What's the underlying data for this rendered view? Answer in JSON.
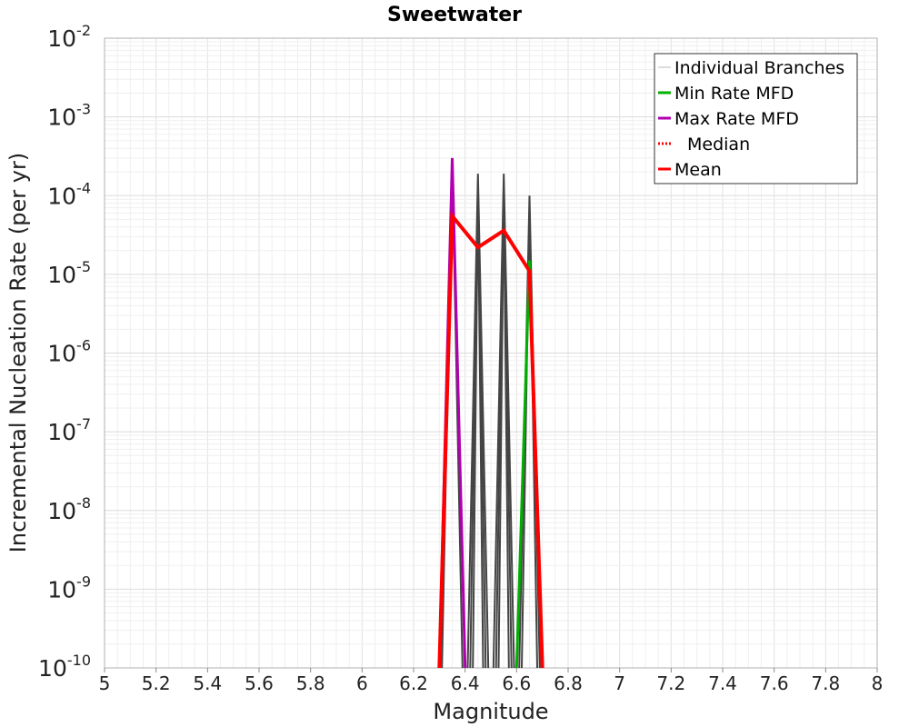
{
  "chart_data": {
    "type": "line",
    "title": "Sweetwater",
    "xlabel": "Magnitude",
    "ylabel": "Incremental Nucleation Rate (per yr)",
    "xlim": [
      5,
      8
    ],
    "ylim": [
      1e-10,
      0.01
    ],
    "yscale": "log",
    "grid": true,
    "legend_position": "top-right",
    "x_ticks": [
      "5",
      "5.2",
      "5.4",
      "5.6",
      "5.8",
      "6",
      "6.2",
      "6.4",
      "6.6",
      "6.8",
      "7",
      "7.2",
      "7.4",
      "7.6",
      "7.8",
      "8"
    ],
    "y_ticks": [
      {
        "base": "10",
        "exp": "-10"
      },
      {
        "base": "10",
        "exp": "-9"
      },
      {
        "base": "10",
        "exp": "-8"
      },
      {
        "base": "10",
        "exp": "-7"
      },
      {
        "base": "10",
        "exp": "-6"
      },
      {
        "base": "10",
        "exp": "-5"
      },
      {
        "base": "10",
        "exp": "-4"
      },
      {
        "base": "10",
        "exp": "-3"
      },
      {
        "base": "10",
        "exp": "-2"
      }
    ],
    "series": [
      {
        "name": "Individual Branches",
        "color": "#444444",
        "style": "solid",
        "branches": [
          {
            "x": [
              6.41,
              6.45,
              6.49
            ],
            "y": [
              1e-10,
              0.00019,
              1e-10
            ]
          },
          {
            "x": [
              6.42,
              6.45,
              6.48
            ],
            "y": [
              1e-10,
              0.00015,
              1e-10
            ]
          },
          {
            "x": [
              6.43,
              6.45,
              6.47
            ],
            "y": [
              1e-10,
              0.00011,
              1e-10
            ]
          },
          {
            "x": [
              6.51,
              6.55,
              6.59
            ],
            "y": [
              1e-10,
              0.00019,
              1e-10
            ]
          },
          {
            "x": [
              6.52,
              6.55,
              6.58
            ],
            "y": [
              1e-10,
              0.00015,
              1e-10
            ]
          },
          {
            "x": [
              6.53,
              6.55,
              6.57
            ],
            "y": [
              1e-10,
              0.00011,
              1e-10
            ]
          },
          {
            "x": [
              6.61,
              6.65,
              6.69
            ],
            "y": [
              1e-10,
              0.0001,
              1e-10
            ]
          },
          {
            "x": [
              6.62,
              6.65,
              6.68
            ],
            "y": [
              1e-10,
              7e-05,
              1e-10
            ]
          },
          {
            "x": [
              6.31,
              6.35,
              6.39
            ],
            "y": [
              1e-10,
              0.00025,
              1e-10
            ]
          }
        ]
      },
      {
        "name": "Min Rate MFD",
        "color": "#00b000",
        "style": "solid",
        "x": [
          6.6,
          6.65,
          6.7
        ],
        "y": [
          1e-10,
          1.5e-05,
          1e-10
        ]
      },
      {
        "name": "Max Rate MFD",
        "color": "#b000b0",
        "style": "solid",
        "x": [
          6.3,
          6.35,
          6.4
        ],
        "y": [
          1e-10,
          0.0003,
          1e-10
        ]
      },
      {
        "name": "Median",
        "color": "#ff0000",
        "style": "dotted",
        "x": [
          6.3,
          6.35,
          6.45,
          6.55,
          6.65,
          6.7
        ],
        "y": [
          1e-10,
          5.5e-05,
          2.2e-05,
          3.6e-05,
          1.1e-05,
          1e-10
        ]
      },
      {
        "name": "Mean",
        "color": "#ff0000",
        "style": "solid",
        "x": [
          6.3,
          6.35,
          6.45,
          6.55,
          6.65,
          6.7
        ],
        "y": [
          1e-10,
          5.5e-05,
          2.2e-05,
          3.6e-05,
          1.1e-05,
          1e-10
        ]
      }
    ]
  }
}
